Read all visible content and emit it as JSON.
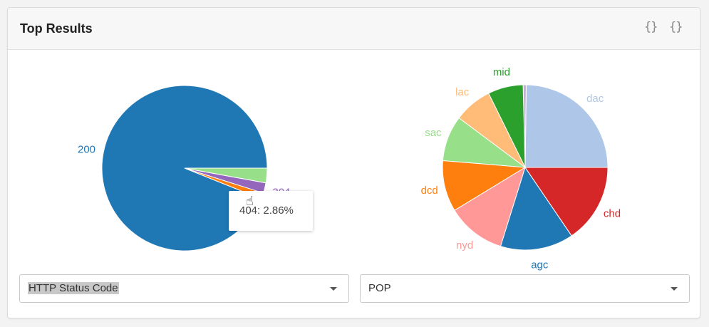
{
  "panel": {
    "title": "Top Results"
  },
  "header_icons": [
    {
      "name": "braces-icon",
      "glyph": "{}"
    },
    {
      "name": "braces-icon",
      "glyph": "{}"
    }
  ],
  "selects": {
    "left": {
      "value": "HTTP Status Code"
    },
    "right": {
      "value": "POP"
    }
  },
  "tooltip": {
    "text": "404: 2.86%"
  },
  "chart_data": [
    {
      "type": "pie",
      "title": "",
      "slices": [
        {
          "label": "200",
          "value": 93.8,
          "color": "#1f77b4",
          "show_label": true
        },
        {
          "label": "",
          "value": 1.2,
          "color": "#ff7f0e",
          "show_label": false
        },
        {
          "label": "304",
          "value": 2.0,
          "color": "#9467bd",
          "show_label": true
        },
        {
          "label": "404",
          "value": 2.86,
          "color": "#98df8a",
          "show_label": false
        }
      ]
    },
    {
      "type": "pie",
      "title": "",
      "slices": [
        {
          "label": "dac",
          "value": 24.8,
          "color": "#aec7e8",
          "show_label": true
        },
        {
          "label": "",
          "value": 0.6,
          "color": "#c5b0d5",
          "show_label": false
        },
        {
          "label": "mid",
          "value": 6.9,
          "color": "#2ca02c",
          "show_label": true
        },
        {
          "label": "lac",
          "value": 7.5,
          "color": "#ffbb78",
          "show_label": true
        },
        {
          "label": "sac",
          "value": 8.9,
          "color": "#98df8a",
          "show_label": true
        },
        {
          "label": "dcd",
          "value": 10.0,
          "color": "#ff7f0e",
          "show_label": true
        },
        {
          "label": "nyd",
          "value": 11.5,
          "color": "#ff9896",
          "show_label": true
        },
        {
          "label": "agc",
          "value": 14.3,
          "color": "#1f77b4",
          "show_label": true
        },
        {
          "label": "chd",
          "value": 15.5,
          "color": "#d62728",
          "show_label": true
        }
      ]
    }
  ]
}
